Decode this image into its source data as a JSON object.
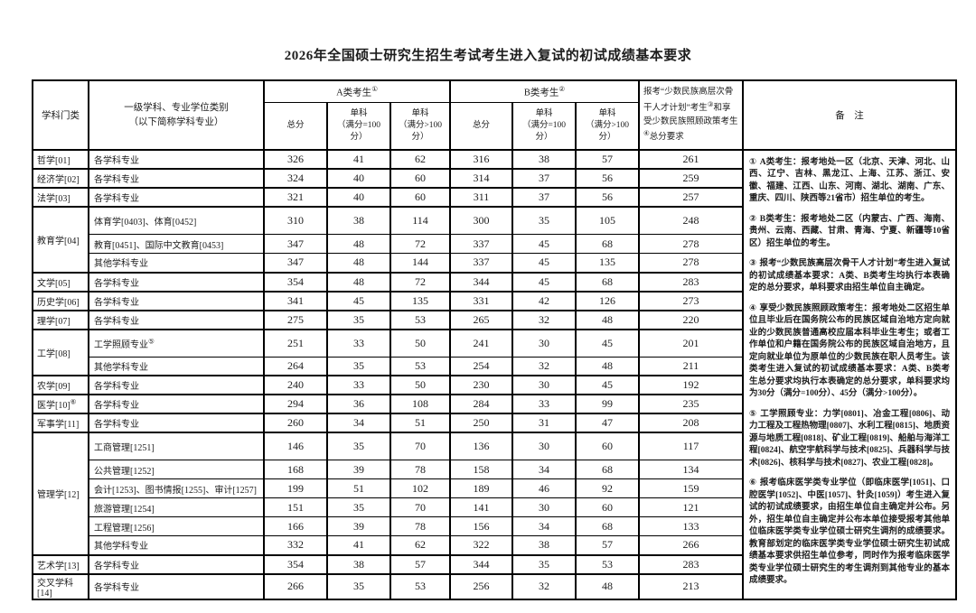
{
  "title": "2026年全国硕士研究生招生考试考生进入复试的初试成绩基本要求",
  "table": {
    "headers": {
      "subject_category": "学科门类",
      "discipline": "一级学科、专业学位类别\n（以下简称学科专业）",
      "group_a": "A类考生",
      "group_a_sup": "①",
      "group_b": "B类考生",
      "group_b_sup": "②",
      "total": "总分",
      "single_100": "单科\n（满分=100分）",
      "single_gt100": "单科\n（满分>100分）",
      "remarks": "备　注"
    },
    "minority_header_segments": [
      {
        "text": "报考“少数民族高层次骨干人才计划”考生"
      },
      {
        "text": "③",
        "sup": true
      },
      {
        "text": "和享受少数民族照顾政策考生"
      },
      {
        "text": "④",
        "sup": true
      },
      {
        "text": "总分要求"
      }
    ],
    "groups": [
      {
        "category": "哲学[01]",
        "category_sup": "",
        "rows": [
          {
            "discipline": "各学科专业",
            "discipline_sup": "",
            "a": [
              326,
              41,
              62
            ],
            "b": [
              316,
              38,
              57
            ],
            "m": 261
          }
        ]
      },
      {
        "category": "经济学[02]",
        "category_sup": "",
        "rows": [
          {
            "discipline": "各学科专业",
            "discipline_sup": "",
            "a": [
              324,
              40,
              60
            ],
            "b": [
              314,
              37,
              56
            ],
            "m": 259
          }
        ]
      },
      {
        "category": "法学[03]",
        "category_sup": "",
        "rows": [
          {
            "discipline": "各学科专业",
            "discipline_sup": "",
            "a": [
              321,
              40,
              60
            ],
            "b": [
              311,
              37,
              56
            ],
            "m": 257
          }
        ]
      },
      {
        "category": "教育学[04]",
        "category_sup": "",
        "rows": [
          {
            "discipline": "体育学[0403]、体育[0452]",
            "discipline_sup": "",
            "a": [
              310,
              38,
              114
            ],
            "b": [
              300,
              35,
              105
            ],
            "m": 248
          },
          {
            "discipline": "教育[0451]、国际中文教育[0453]",
            "discipline_sup": "",
            "a": [
              347,
              48,
              72
            ],
            "b": [
              337,
              45,
              68
            ],
            "m": 278
          },
          {
            "discipline": "其他学科专业",
            "discipline_sup": "",
            "a": [
              347,
              48,
              144
            ],
            "b": [
              337,
              45,
              135
            ],
            "m": 278
          }
        ]
      },
      {
        "category": "文学[05]",
        "category_sup": "",
        "rows": [
          {
            "discipline": "各学科专业",
            "discipline_sup": "",
            "a": [
              354,
              48,
              72
            ],
            "b": [
              344,
              45,
              68
            ],
            "m": 283
          }
        ]
      },
      {
        "category": "历史学[06]",
        "category_sup": "",
        "rows": [
          {
            "discipline": "各学科专业",
            "discipline_sup": "",
            "a": [
              341,
              45,
              135
            ],
            "b": [
              331,
              42,
              126
            ],
            "m": 273
          }
        ]
      },
      {
        "category": "理学[07]",
        "category_sup": "",
        "rows": [
          {
            "discipline": "各学科专业",
            "discipline_sup": "",
            "a": [
              275,
              35,
              53
            ],
            "b": [
              265,
              32,
              48
            ],
            "m": 220
          }
        ]
      },
      {
        "category": "工学[08]",
        "category_sup": "",
        "rows": [
          {
            "discipline": "工学照顾专业",
            "discipline_sup": "⑤",
            "a": [
              251,
              33,
              50
            ],
            "b": [
              241,
              30,
              45
            ],
            "m": 201
          },
          {
            "discipline": "其他学科专业",
            "discipline_sup": "",
            "a": [
              264,
              35,
              53
            ],
            "b": [
              254,
              32,
              48
            ],
            "m": 211
          }
        ]
      },
      {
        "category": "农学[09]",
        "category_sup": "",
        "rows": [
          {
            "discipline": "各学科专业",
            "discipline_sup": "",
            "a": [
              240,
              33,
              50
            ],
            "b": [
              230,
              30,
              45
            ],
            "m": 192
          }
        ]
      },
      {
        "category": "医学[10]",
        "category_sup": "⑥",
        "rows": [
          {
            "discipline": "各学科专业",
            "discipline_sup": "",
            "a": [
              294,
              36,
              108
            ],
            "b": [
              284,
              33,
              99
            ],
            "m": 235
          }
        ]
      },
      {
        "category": "军事学[11]",
        "category_sup": "",
        "rows": [
          {
            "discipline": "各学科专业",
            "discipline_sup": "",
            "a": [
              260,
              34,
              51
            ],
            "b": [
              250,
              31,
              47
            ],
            "m": 208
          }
        ]
      },
      {
        "category": "管理学[12]",
        "category_sup": "",
        "rows": [
          {
            "discipline": "工商管理[1251]",
            "discipline_sup": "",
            "a": [
              146,
              35,
              70
            ],
            "b": [
              136,
              30,
              60
            ],
            "m": 117
          },
          {
            "discipline": "公共管理[1252]",
            "discipline_sup": "",
            "a": [
              168,
              39,
              78
            ],
            "b": [
              158,
              34,
              68
            ],
            "m": 134
          },
          {
            "discipline": "会计[1253]、图书情报[1255]、审计[1257]",
            "discipline_sup": "",
            "a": [
              199,
              51,
              102
            ],
            "b": [
              189,
              46,
              92
            ],
            "m": 159
          },
          {
            "discipline": "旅游管理[1254]",
            "discipline_sup": "",
            "a": [
              151,
              35,
              70
            ],
            "b": [
              141,
              30,
              60
            ],
            "m": 121
          },
          {
            "discipline": "工程管理[1256]",
            "discipline_sup": "",
            "a": [
              166,
              39,
              78
            ],
            "b": [
              156,
              34,
              68
            ],
            "m": 133
          },
          {
            "discipline": "其他学科专业",
            "discipline_sup": "",
            "a": [
              332,
              41,
              62
            ],
            "b": [
              322,
              38,
              57
            ],
            "m": 266
          }
        ]
      },
      {
        "category": "艺术学[13]",
        "category_sup": "",
        "rows": [
          {
            "discipline": "各学科专业",
            "discipline_sup": "",
            "a": [
              354,
              38,
              57
            ],
            "b": [
              344,
              35,
              53
            ],
            "m": 283
          }
        ]
      },
      {
        "category": "交叉学科[14]",
        "category_sup": "",
        "rows": [
          {
            "discipline": "各学科专业",
            "discipline_sup": "",
            "a": [
              266,
              35,
              53
            ],
            "b": [
              256,
              32,
              48
            ],
            "m": 213
          }
        ]
      }
    ],
    "notes": [
      {
        "num": "①",
        "text": "A类考生：报考地处一区（北京、天津、河北、山西、辽宁、吉林、黑龙江、上海、江苏、浙江、安徽、福建、江西、山东、河南、湖北、湖南、广东、重庆、四川、陕西等21省市）招生单位的考生。"
      },
      {
        "num": "②",
        "text": "B类考生：报考地处二区（内蒙古、广西、海南、贵州、云南、西藏、甘肃、青海、宁夏、新疆等10省区）招生单位的考生。"
      },
      {
        "num": "③",
        "text": "报考“少数民族高层次骨干人才计划”考生进入复试的初试成绩基本要求：A类、B类考生均执行本表确定的总分要求，单科要求由招生单位自主确定。"
      },
      {
        "num": "④",
        "text": "享受少数民族照顾政策考生：报考地处二区招生单位且毕业后在国务院公布的民族区域自治地方定向就业的少数民族普通高校应届本科毕业生考生；或者工作单位和户籍在国务院公布的民族区域自治地方，且定向就业单位为原单位的少数民族在职人员考生。该类考生进入复试的初试成绩基本要求：A类、B类考生总分要求均执行本表确定的总分要求，单科要求均为30分（满分=100分）、45分（满分>100分）。"
      },
      {
        "num": "⑤",
        "text": "工学照顾专业：力学[0801]、冶金工程[0806]、动力工程及工程热物理[0807]、水利工程[0815]、地质资源与地质工程[0818]、矿业工程[0819]、船舶与海洋工程[0824]、航空宇航科学与技术[0825]、兵器科学与技术[0826]、核科学与技术[0827]、农业工程[0828]。"
      },
      {
        "num": "⑥",
        "text": "报考临床医学类专业学位（即临床医学[1051]、口腔医学[1052]、中医[1057]、针灸[1059]）考生进入复试的初试成绩要求，由招生单位自主确定并公布。另外，招生单位自主确定并公布本单位接受报考其他单位临床医学类专业学位硕士研究生调剂的成绩要求。教育部划定的临床医学类专业学位硕士研究生初试成绩基本要求供招生单位参考，同时作为报考临床医学类专业学位硕士研究生的考生调剂到其他专业的基本成绩要求。"
      }
    ]
  }
}
